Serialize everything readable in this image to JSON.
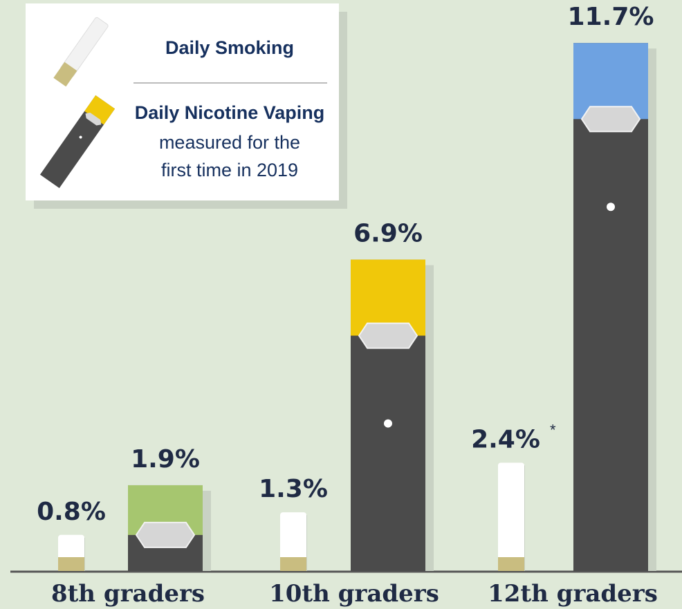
{
  "chart_data": {
    "type": "bar",
    "categories": [
      "8th graders",
      "10th graders",
      "12th graders"
    ],
    "series": [
      {
        "name": "Daily Smoking",
        "color": "#ffffff",
        "tip_color": "#c9bd80",
        "values": [
          0.8,
          1.3,
          2.4
        ],
        "value_labels": [
          "0.8%",
          "1.3%",
          "2.4%"
        ]
      },
      {
        "name": "Daily Nicotine Vaping",
        "color": "#4b4b4b",
        "colors": [
          "#a6c66f",
          "#f0c80a",
          "#6ea2e1"
        ],
        "values": [
          1.9,
          6.9,
          11.7
        ],
        "value_labels": [
          "1.9%",
          "6.9%",
          "11.7%"
        ]
      }
    ],
    "legend_note": [
      "measured for the",
      "first time in 2019"
    ],
    "annotation": "*",
    "ylim": [
      0,
      12.5
    ]
  }
}
